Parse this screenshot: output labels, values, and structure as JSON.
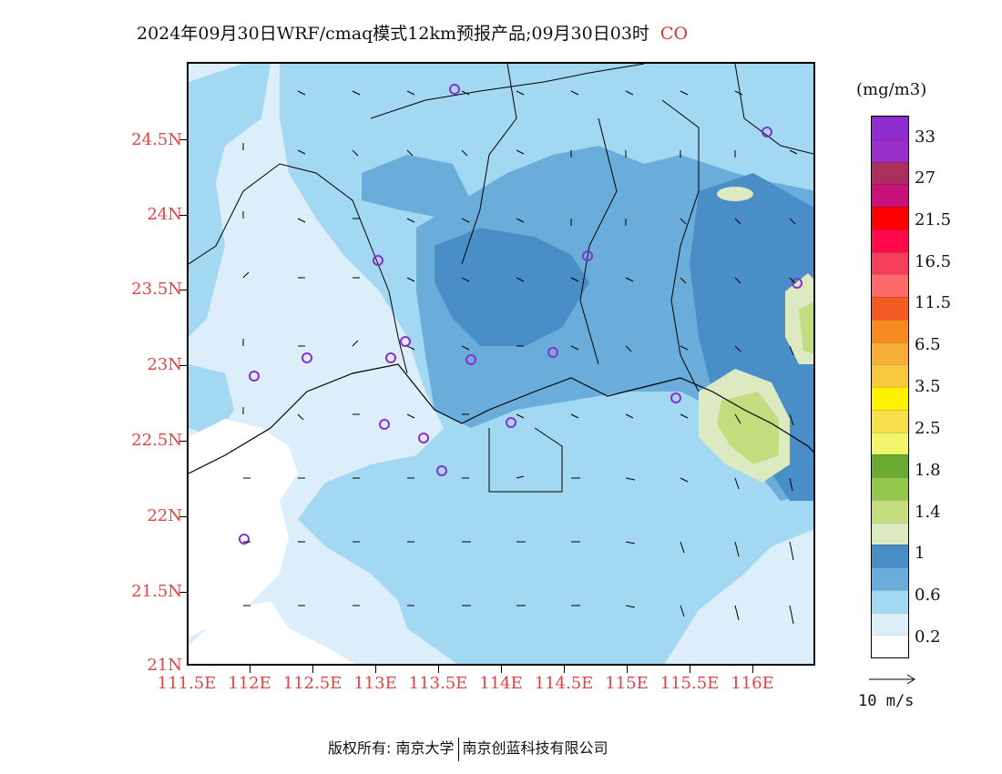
{
  "title": {
    "text": "2024年09月30日WRF/cmaq模式12km预报产品;09月30日03时",
    "species": "CO"
  },
  "map": {
    "lat_labels": [
      "24.5N",
      "24N",
      "23.5N",
      "23N",
      "22.5N",
      "22N",
      "21.5N",
      "21N"
    ],
    "lon_labels": [
      "111.5E",
      "112E",
      "112.5E",
      "113E",
      "113.5E",
      "114E",
      "114.5E",
      "115E",
      "115.5E",
      "116E"
    ],
    "field_colors": {
      "c02": "#dbeef9",
      "c06": "#a2d8f2",
      "c1": "#6aaddb",
      "c14": "#4a8ec8",
      "c18": "#dde9c0",
      "c25": "#c2dc7e",
      "land_white": "#ffffff"
    }
  },
  "colorbar": {
    "units": "(mg/m3)",
    "labels": [
      "0.2",
      "0.6",
      "1",
      "1.4",
      "1.8",
      "2.5",
      "3.5",
      "6.5",
      "11.5",
      "16.5",
      "21.5",
      "27",
      "33"
    ],
    "colors": [
      "#ffffff",
      "#dbeef9",
      "#a2d8f2",
      "#6aaddb",
      "#4a8ec8",
      "#dde9c0",
      "#c2dc7e",
      "#93c84c",
      "#6aaa32",
      "#f2f46a",
      "#f7e04c",
      "#fff200",
      "#f7c83c",
      "#f7ae38",
      "#f78a20",
      "#f45a24",
      "#fd6a6a",
      "#f43e5a",
      "#ff0a4a",
      "#ff0000",
      "#c8127a",
      "#aa2e5e",
      "#9a2ecd",
      "#8e2ed0"
    ]
  },
  "wind": {
    "reference_label": "10 m/s"
  },
  "copyright": {
    "owner_label": "版权所有:",
    "owner_1": "南京大学",
    "owner_2": "南京创蓝科技有限公司"
  }
}
